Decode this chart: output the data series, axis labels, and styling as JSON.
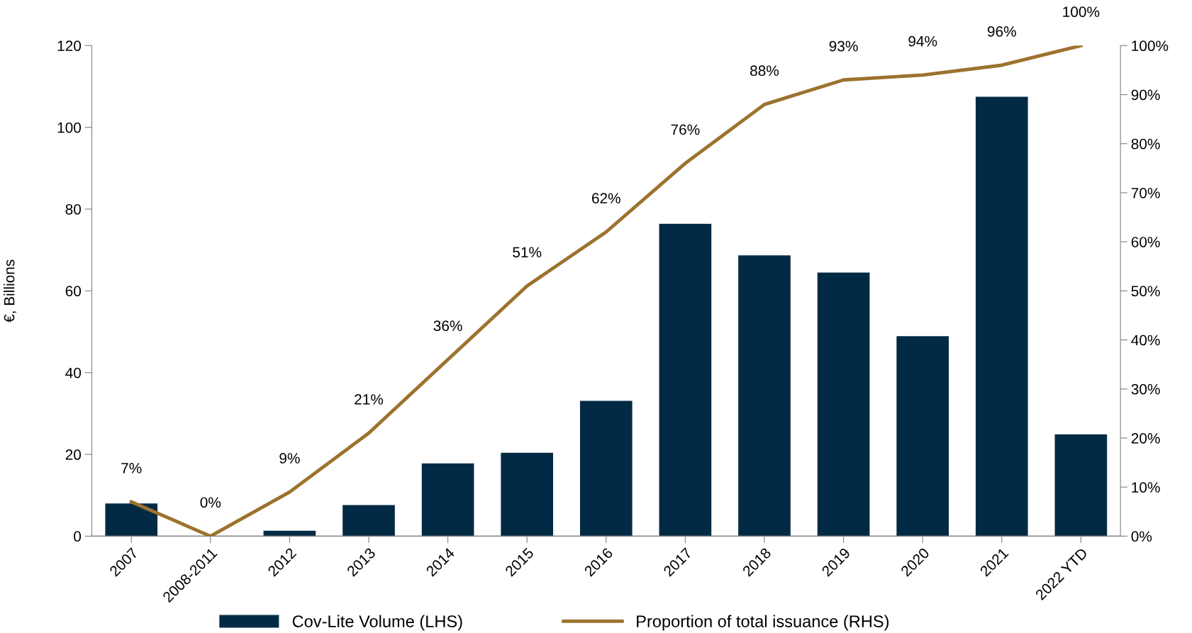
{
  "chart_data": {
    "type": "bar",
    "ylabel": "€, Billions",
    "categories": [
      "2007",
      "2008-2011",
      "2012",
      "2013",
      "2014",
      "2015",
      "2016",
      "2017",
      "2018",
      "2019",
      "2020",
      "2021",
      "2022 YTD"
    ],
    "series": [
      {
        "name": "Cov-Lite Volume (LHS)",
        "color": "#032a44",
        "values": [
          8.0,
          0,
          1.3,
          7.6,
          17.8,
          20.4,
          33.1,
          76.4,
          68.7,
          64.5,
          48.9,
          107.5,
          24.9
        ]
      },
      {
        "name": "Proportion of total issuance (RHS)",
        "type": "line",
        "axis": "y2",
        "color": "#9c722e",
        "values": [
          7,
          0,
          9,
          21,
          36,
          51,
          62,
          76,
          88,
          93,
          94,
          96,
          100
        ],
        "value_labels": [
          "7%",
          "0%",
          "9%",
          "21%",
          "36%",
          "51%",
          "62%",
          "76%",
          "88%",
          "93%",
          "94%",
          "96%",
          "100%"
        ]
      }
    ],
    "ylim": [
      0,
      120
    ],
    "yticks": [
      0,
      20,
      40,
      60,
      80,
      100,
      120
    ],
    "y2lim": [
      0,
      100
    ],
    "y2ticks": [
      {
        "value": 0,
        "label": "0%"
      },
      {
        "value": 10,
        "label": "10%"
      },
      {
        "value": 20,
        "label": "20%"
      },
      {
        "value": 30,
        "label": "30%"
      },
      {
        "value": 40,
        "label": "40%"
      },
      {
        "value": 50,
        "label": "50%"
      },
      {
        "value": 60,
        "label": "60%"
      },
      {
        "value": 70,
        "label": "70%"
      },
      {
        "value": 80,
        "label": "80%"
      },
      {
        "value": 90,
        "label": "90%"
      },
      {
        "value": 100,
        "label": "100%"
      }
    ],
    "grid": false,
    "legend": "bottom"
  }
}
